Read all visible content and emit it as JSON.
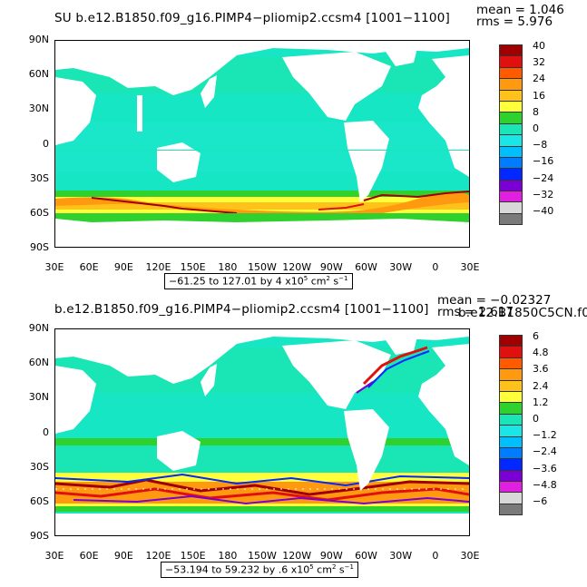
{
  "panels": [
    {
      "title": "SU b.e12.B1850.f09_g16.PIMP4−pliomip2.ccsm4 [1001−1100]",
      "mean": "mean = 1.046",
      "rms": "rms = 5.976",
      "range_main": "−61.25 to 127.01 by 4 x10",
      "range_exp": "5",
      "range_units": " cm",
      "range_units_exp": "2",
      "range_tail": " s",
      "range_tail_exp": "−1",
      "colorbar_labels": [
        "40",
        "32",
        "24",
        "16",
        "8",
        "0",
        "−8",
        "−16",
        "−24",
        "−32",
        "−40"
      ]
    },
    {
      "title": "b.e12.B1850.f09_g16.PIMP4−pliomip2.ccsm4 [1001−1100]",
      "overlap_text": "b.e12.B1850C5CN.f0",
      "mean": "mean = −0.02327",
      "rms": "rms = 2.617",
      "range_main": "−53.194 to 59.232 by .6 x10",
      "range_exp": "5",
      "range_units": " cm",
      "range_units_exp": "2",
      "range_tail": " s",
      "range_tail_exp": "−1",
      "colorbar_labels": [
        "6",
        "4.8",
        "3.6",
        "2.4",
        "1.2",
        "0",
        "−1.2",
        "−2.4",
        "−3.6",
        "−4.8",
        "−6"
      ]
    }
  ],
  "y_ticks": [
    "90N",
    "60N",
    "30N",
    "0",
    "30S",
    "60S",
    "90S"
  ],
  "x_ticks": [
    "30E",
    "60E",
    "90E",
    "120E",
    "150E",
    "180",
    "150W",
    "120W",
    "90W",
    "60W",
    "30W",
    "0",
    "30E"
  ],
  "colorbar_colors": [
    "#a00000",
    "#e01010",
    "#ff5a00",
    "#ff9a10",
    "#ffc21a",
    "#ffff3a",
    "#2fd12f",
    "#19e6b4",
    "#19e6e6",
    "#00bfff",
    "#007dff",
    "#0028ff",
    "#7a00d6",
    "#e01fe0",
    "#d8d8d8",
    "#7a7a7a"
  ],
  "colors": {
    "land": "#ffffff",
    "ocean_base": "#16e6c4",
    "frame": "#000000"
  }
}
